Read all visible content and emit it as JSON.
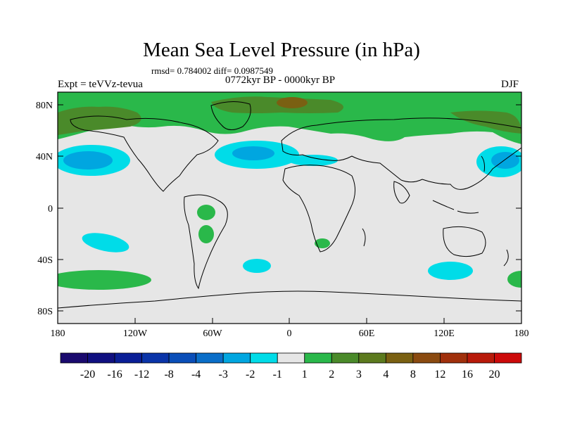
{
  "title": "Mean Sea Level Pressure (in hPa)",
  "stats": "rmsd= 0.784002 diff= 0.0987549",
  "period": "0772kyr BP - 0000kyr BP",
  "left_label": "Expt = teVVz-tevua",
  "right_label": "DJF",
  "lat_labels": [
    "80N",
    "40N",
    "0",
    "40S",
    "80S"
  ],
  "lon_labels": [
    "180",
    "120W",
    "60W",
    "0",
    "60E",
    "120E",
    "180"
  ],
  "colorbar": {
    "tick_labels": [
      "-20",
      "-16",
      "-12",
      "-8",
      "-4",
      "-3",
      "-2",
      "-1",
      "1",
      "2",
      "3",
      "4",
      "8",
      "12",
      "16",
      "20"
    ],
    "colors": [
      "#1a0a6e",
      "#101080",
      "#0a1e96",
      "#0a34a8",
      "#0a4eb8",
      "#0a6ec8",
      "#00a6e0",
      "#00dce8",
      "#e6e6e6",
      "#2ab84a",
      "#4a8a2a",
      "#5c7a1e",
      "#7a6012",
      "#8a4a10",
      "#a0300c",
      "#b81a0a",
      "#cc0a0a"
    ]
  },
  "colors": {
    "background": "#e6e6e6",
    "positive_low": "#2ab84a",
    "positive_mid": "#4a8a2a",
    "positive_high": "#7a6012",
    "negative_low": "#00dce8",
    "negative_mid": "#00a6e0"
  }
}
